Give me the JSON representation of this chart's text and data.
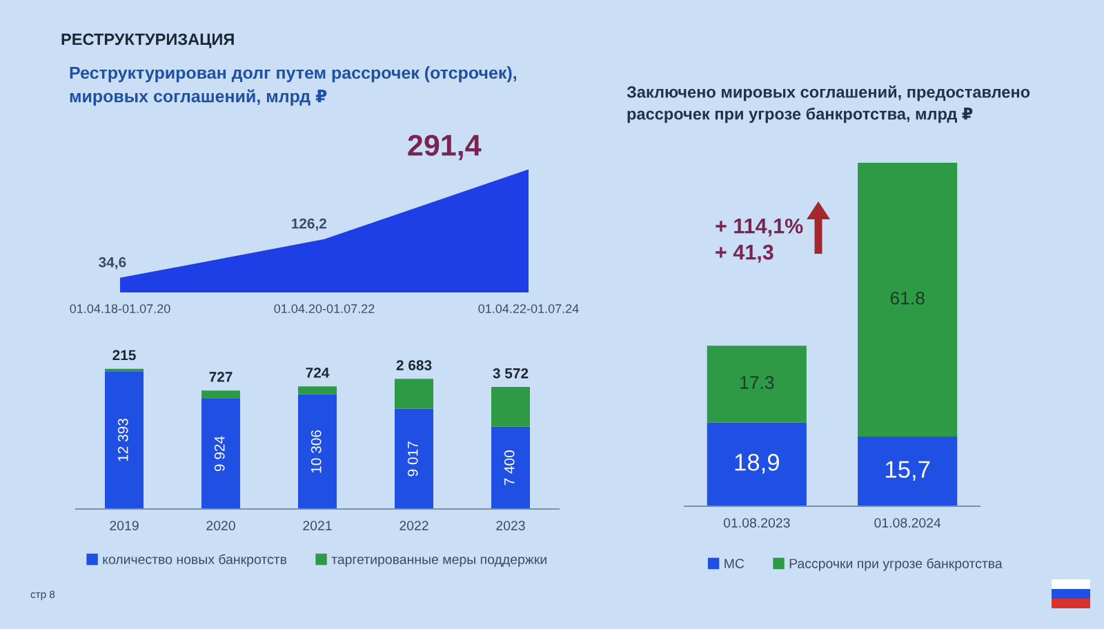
{
  "chart_data": [
    {
      "type": "area",
      "title": "Реструктурирован долг путем рассрочек (отсрочек),\nмировых соглашений, млрд ₽",
      "annotations": [
        "РЕСТРУКТУРИЗАЦИЯ",
        "стр 8"
      ],
      "categories": [
        "01.04.18-01.07.20",
        "01.04.20-01.07.22",
        "01.04.22-01.07.24"
      ],
      "values": [
        34.6,
        126.2,
        291.4
      ],
      "color": "#1f3fe6",
      "value_labels": [
        "34,6",
        "126,2",
        "291,4"
      ]
    },
    {
      "type": "bar",
      "stacked": true,
      "categories": [
        "2019",
        "2020",
        "2021",
        "2022",
        "2023"
      ],
      "series": [
        {
          "name": "количество новых банкротств",
          "color": "#1f4fe3",
          "values": [
            12393,
            9924,
            10306,
            9017,
            7400
          ],
          "value_labels": [
            "12 393",
            "9 924",
            "10 306",
            "9 017",
            "7 400"
          ]
        },
        {
          "name": "таргетированные меры поддержки",
          "color": "#2e9a45",
          "values": [
            215,
            727,
            724,
            2683,
            3572
          ],
          "value_labels": [
            "215",
            "727",
            "724",
            "2 683",
            "3 572"
          ]
        }
      ],
      "legend": "bottom"
    },
    {
      "type": "bar",
      "stacked": true,
      "title": "Заключено мировых соглашений, предоставлено\nрассрочек при угрозе банкротства, млрд ₽",
      "annotations": [
        "+ 114,1%",
        "+ 41,3"
      ],
      "categories": [
        "01.08.2023",
        "01.08.2024"
      ],
      "series": [
        {
          "name": "МС",
          "color": "#1f4fe3",
          "values": [
            18.9,
            15.7
          ],
          "value_labels": [
            "18,9",
            "15,7"
          ]
        },
        {
          "name": "Рассрочки при угрозе банкротства",
          "color": "#2e9a45",
          "values": [
            17.3,
            61.8
          ],
          "value_labels": [
            "17.3",
            "61.8"
          ]
        }
      ],
      "legend": "bottom"
    }
  ]
}
